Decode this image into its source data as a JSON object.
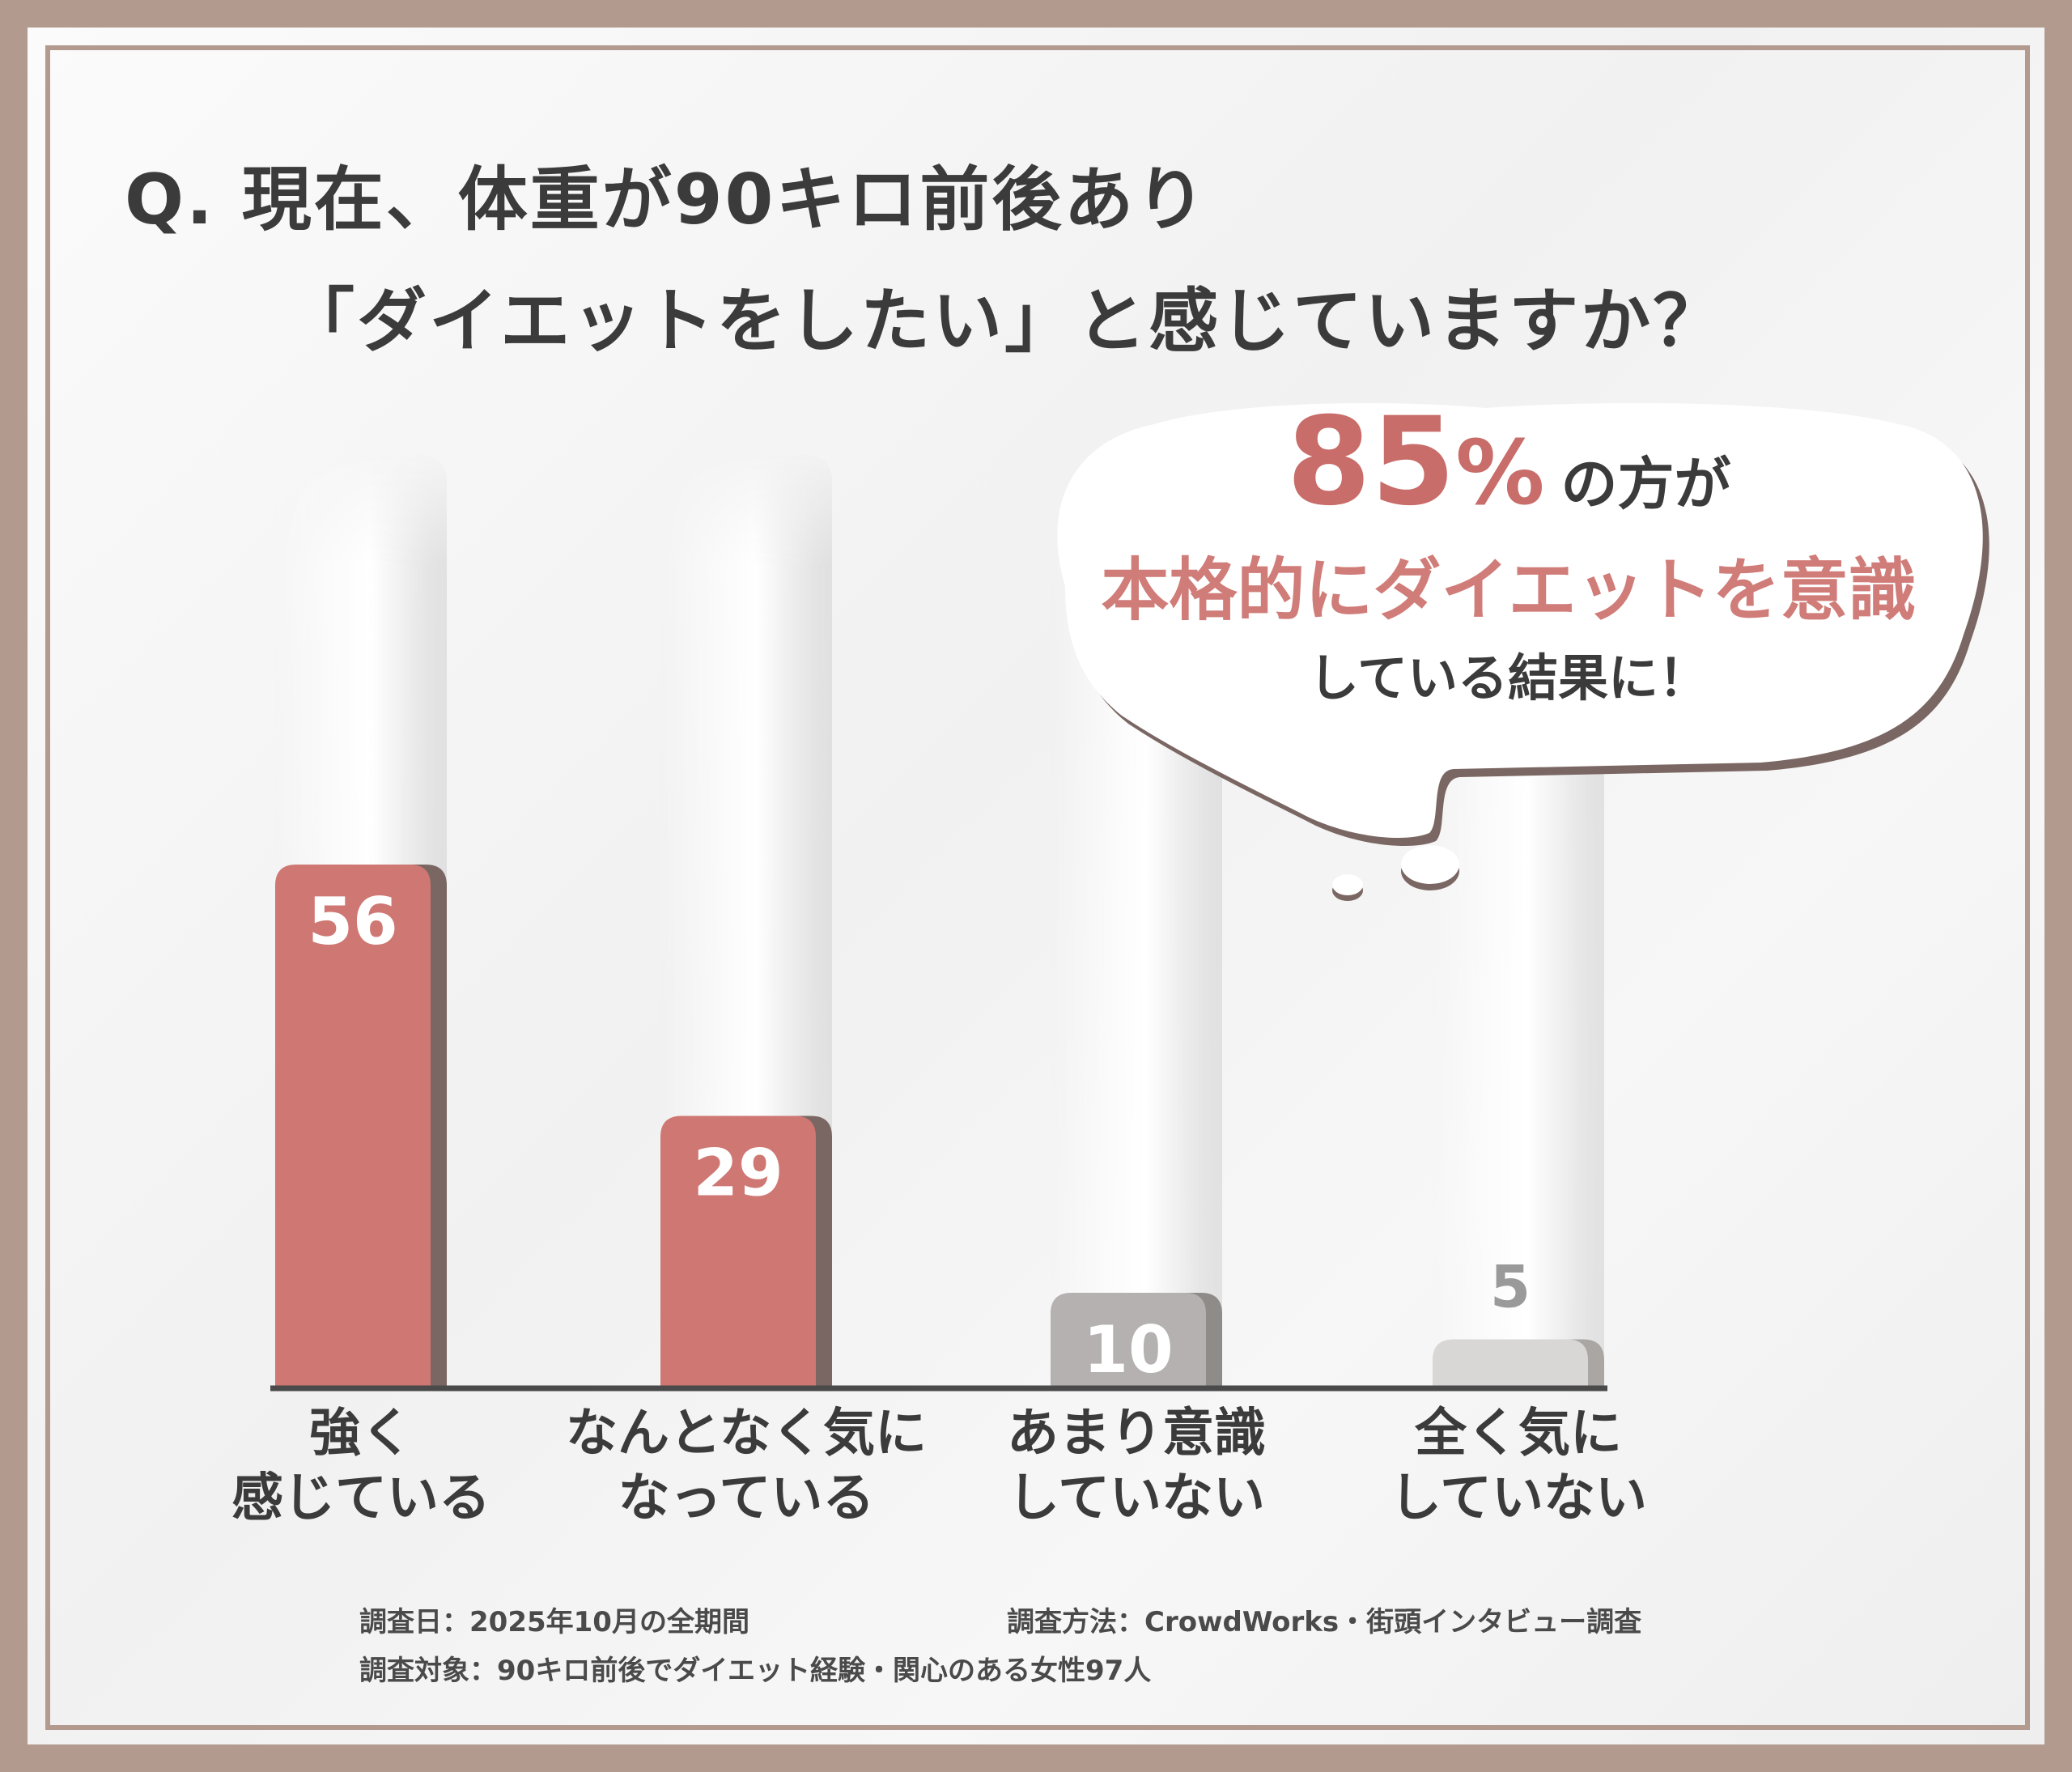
{
  "title": {
    "line1": "Q. 現在、体重が90キロ前後あり",
    "line2": "「ダイエットをしたい」と感じていますか？"
  },
  "callout": {
    "value": "85",
    "unit": "%",
    "suffix": "の方が",
    "highlight": "本格的にダイエットを意識",
    "line3": "している結果に！"
  },
  "chart_data": {
    "type": "bar",
    "categories": [
      [
        "強く",
        "感じている"
      ],
      [
        "なんとなく気に",
        "なっている"
      ],
      [
        "あまり意識",
        "していない"
      ],
      [
        "全く気に",
        "していない"
      ]
    ],
    "values": [
      56,
      29,
      10,
      5
    ],
    "ylim": [
      0,
      100
    ],
    "grid": false,
    "colors": [
      "#cf7772",
      "#cf7772",
      "#b4b1b0",
      "#d9d7d6"
    ],
    "label_colors": [
      "#ffffff",
      "#ffffff",
      "#ffffff",
      "#9a9a9a"
    ],
    "shadow_colors": [
      "#7a6763",
      "#7a6763",
      "#8f8b89",
      "#aaa6a4"
    ],
    "axis_color": "#4a4a4a"
  },
  "footnotes": {
    "date": "調査日：2025年10月の全期間",
    "method": "調査方法：CrowdWorks・街頭インタビュー調査",
    "target": "調査対象：90キロ前後でダイエット経験・関心のある女性97人"
  }
}
